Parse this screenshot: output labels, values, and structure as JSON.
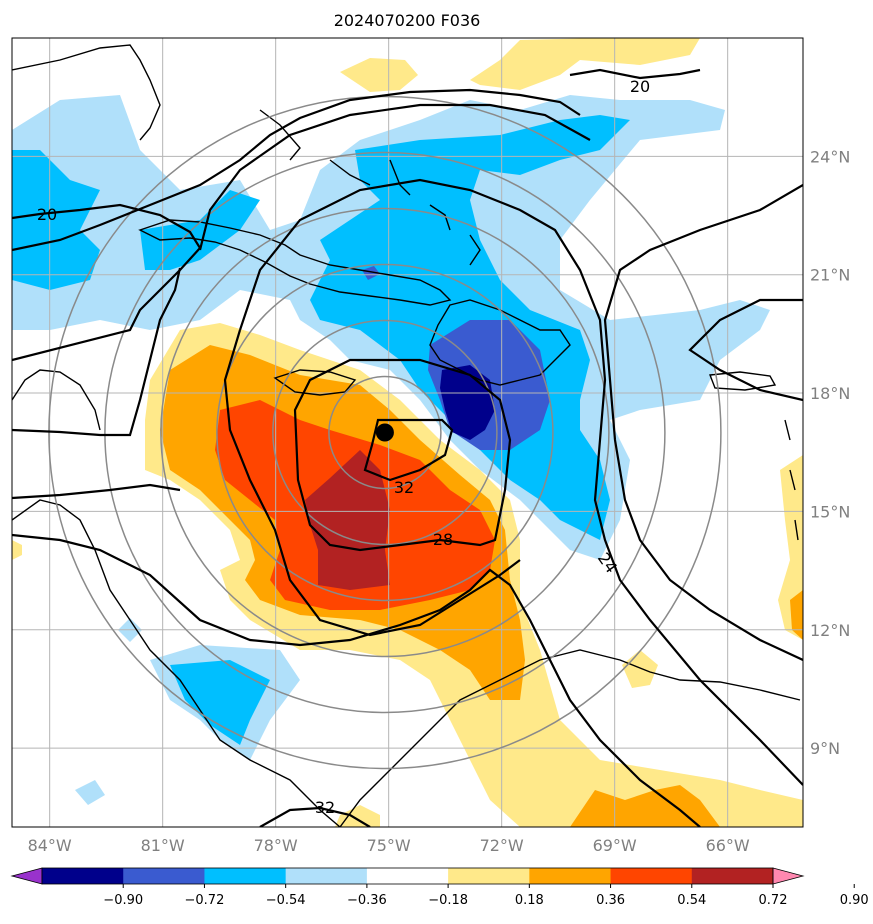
{
  "title": "2024070200 F036",
  "map": {
    "lon_range": [
      -85,
      -64
    ],
    "lat_range": [
      7,
      27
    ],
    "lon_ticks": [
      "84°W",
      "81°W",
      "78°W",
      "75°W",
      "72°W",
      "69°W",
      "66°W"
    ],
    "lat_ticks": [
      "9°N",
      "12°N",
      "15°N",
      "18°N",
      "21°N",
      "24°N"
    ],
    "storm_center": {
      "lon": -75.1,
      "lat": 17.0
    },
    "contour_labels": [
      "20",
      "20",
      "32",
      "28",
      "24",
      "32"
    ],
    "range_rings": 6
  },
  "colorbar": {
    "ticks": [
      "−0.90",
      "−0.72",
      "−0.54",
      "−0.36",
      "−0.18",
      "0.18",
      "0.36",
      "0.54",
      "0.72",
      "0.90"
    ],
    "colors": [
      "#9932cc",
      "#00008b",
      "#3a5bd0",
      "#00bfff",
      "#b0e0fa",
      "#ffffff",
      "#ffe98a",
      "#ffa500",
      "#ff4500",
      "#b22222",
      "#ff88b0"
    ]
  }
}
